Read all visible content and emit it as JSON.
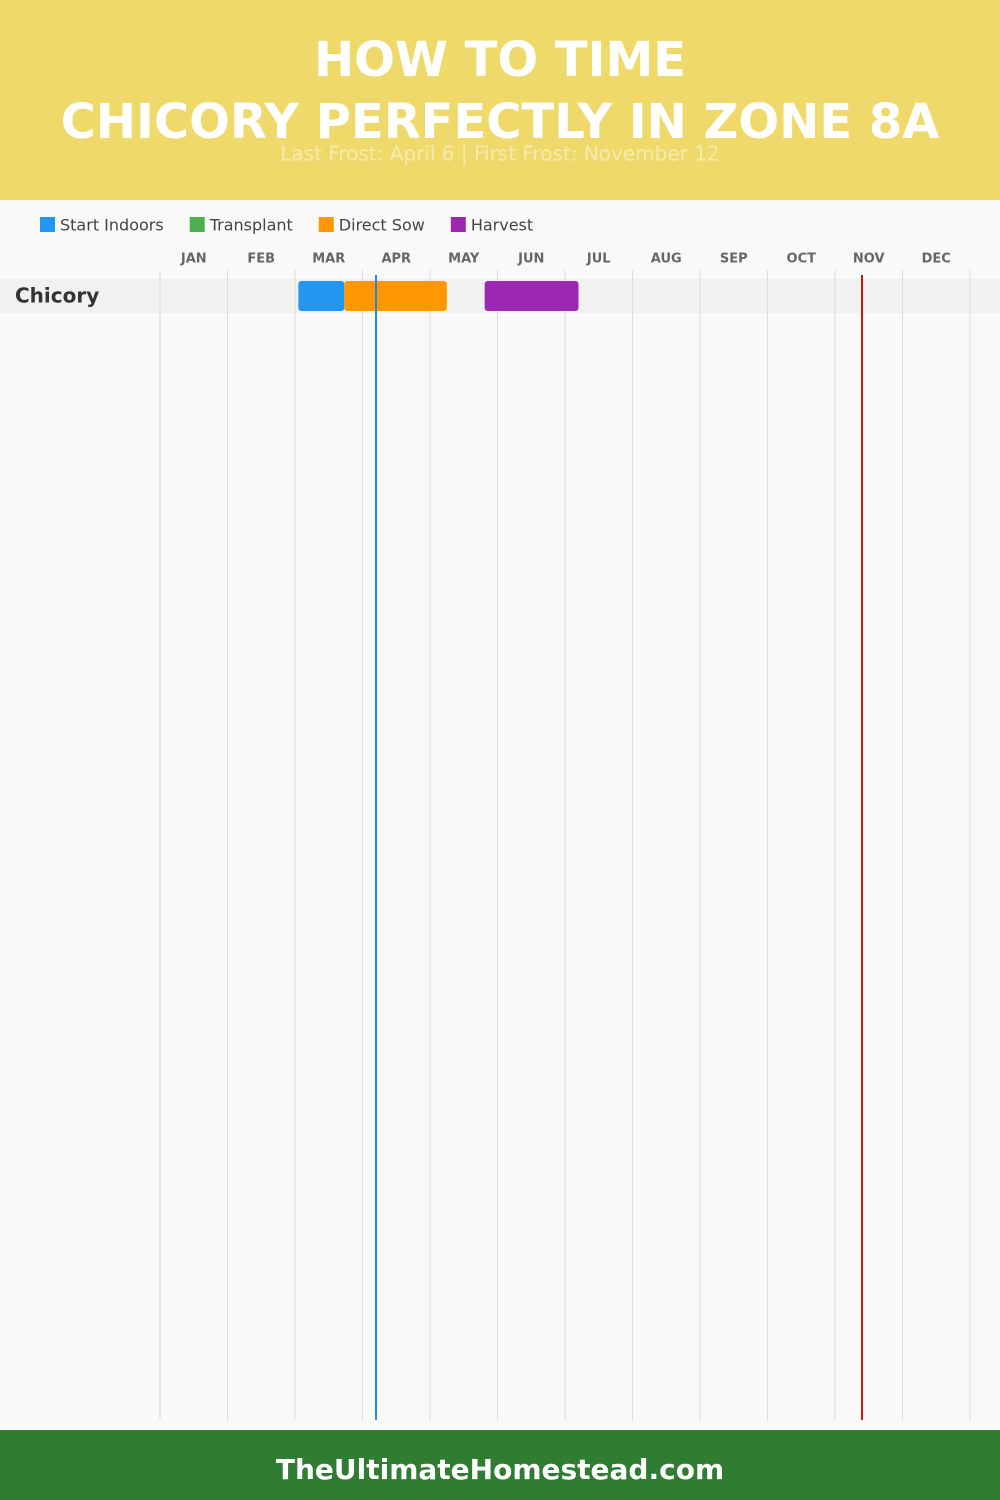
{
  "chart_data": {
    "type": "gantt",
    "title": "HOW TO TIME CHICORY PERFECTLY IN ZONE 8A",
    "subtitle": "Last Frost: April 6 | First Frost: November 12",
    "categories": [
      "Chicory"
    ],
    "series": [
      {
        "name": "Start Indoors",
        "color": "#2196f3",
        "values": [
          [
            2.05,
            2.73
          ]
        ]
      },
      {
        "name": "Transplant",
        "color": "#4caf50",
        "values": [
          null
        ]
      },
      {
        "name": "Direct Sow",
        "color": "#ff9800",
        "values": [
          [
            2.73,
            4.25
          ]
        ]
      },
      {
        "name": "Harvest",
        "color": "#9c27b0",
        "values": [
          [
            4.81,
            6.2
          ]
        ]
      }
    ],
    "xlim": [
      0,
      12
    ],
    "xticks": [
      {
        "value": 0,
        "label": "JAN"
      },
      {
        "value": 1,
        "label": "FEB"
      },
      {
        "value": 2,
        "label": "MAR"
      },
      {
        "value": 3,
        "label": "APR"
      },
      {
        "value": 4,
        "label": "MAY"
      },
      {
        "value": 5,
        "label": "JUN"
      },
      {
        "value": 6,
        "label": "JUL"
      },
      {
        "value": 7,
        "label": "AUG"
      },
      {
        "value": 8,
        "label": "SEP"
      },
      {
        "value": 9,
        "label": "OCT"
      },
      {
        "value": 10,
        "label": "NOV"
      },
      {
        "value": 11,
        "label": "DEC"
      }
    ],
    "frost_lines": [
      {
        "value": 3.2,
        "color": "#1e88e5"
      },
      {
        "value": 10.4,
        "color": "#b71c1c"
      }
    ],
    "grid": true,
    "footer": "TheUltimateHomestead.com"
  }
}
